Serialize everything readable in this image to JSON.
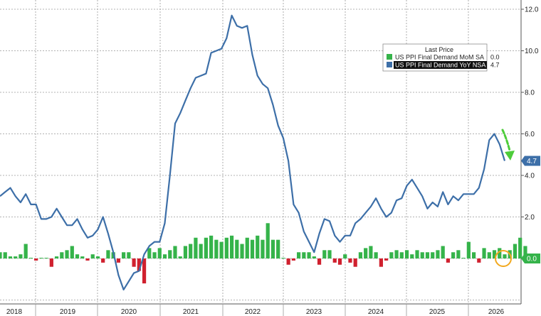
{
  "chart_data": {
    "type": "line",
    "legend": {
      "title": "Last Price",
      "placement": "top-right",
      "entries": [
        {
          "label": "US PPI Final Demand MoM SA",
          "value": "0.0",
          "color": "#35b34a"
        },
        {
          "label": "US PPI Final Demand YoY NSA",
          "value": "4.7",
          "color": "#3d6fa8"
        }
      ]
    },
    "y_ticks": [
      "12.0",
      "10.0",
      "8.0",
      "6.0",
      "4.0",
      "2.0",
      "0.0"
    ],
    "ylim": [
      -2.0,
      12.0
    ],
    "x_labels": [
      "2018",
      "2019",
      "2020",
      "2021",
      "2022",
      "2023",
      "2024",
      "2025",
      "2026"
    ],
    "grid": true,
    "last_value_tags": [
      {
        "text": "4.7",
        "value": 4.7,
        "color": "#3d6fa8"
      },
      {
        "text": "0.0",
        "value": 0.0,
        "color": "#35b34a"
      }
    ],
    "series": [
      {
        "name": "US PPI Final Demand YoY NSA",
        "kind": "line",
        "color": "#3d6fa8",
        "values": [
          3.0,
          3.2,
          3.4,
          3.0,
          2.7,
          3.1,
          2.6,
          2.6,
          1.9,
          1.9,
          2.0,
          2.4,
          2.0,
          1.6,
          1.6,
          1.9,
          1.4,
          1.0,
          1.1,
          1.4,
          2.0,
          1.2,
          0.3,
          -0.8,
          -1.5,
          -1.1,
          -0.7,
          -0.6,
          0.2,
          0.6,
          0.8,
          0.8,
          1.7,
          4.0,
          6.5,
          7.0,
          7.6,
          8.2,
          8.7,
          8.8,
          8.9,
          9.9,
          10.0,
          10.1,
          10.6,
          11.7,
          11.2,
          11.1,
          11.2,
          9.8,
          8.8,
          8.4,
          8.2,
          7.4,
          6.4,
          5.8,
          4.7,
          2.6,
          2.2,
          1.3,
          0.8,
          0.3,
          1.2,
          1.9,
          1.8,
          1.1,
          0.8,
          1.1,
          1.1,
          1.7,
          1.9,
          2.2,
          2.5,
          2.9,
          2.4,
          2.0,
          2.2,
          2.8,
          2.9,
          3.5,
          3.8,
          3.4,
          3.0,
          2.4,
          2.7,
          2.5,
          3.2,
          2.6,
          3.0,
          2.8,
          3.1,
          3.1,
          3.1,
          3.4,
          4.3,
          5.7,
          6.0,
          5.5,
          4.7
        ]
      },
      {
        "name": "US PPI Final Demand MoM SA",
        "kind": "bar",
        "color": "#35b34a",
        "negative_color": "#d0202e",
        "values": [
          0.3,
          0.3,
          0.1,
          0.1,
          0.2,
          0.7,
          0.0,
          -0.1,
          0.0,
          0.0,
          -0.4,
          0.1,
          0.3,
          0.4,
          0.6,
          0.2,
          0.1,
          -0.1,
          0.2,
          0.1,
          -0.2,
          0.4,
          0.3,
          -0.2,
          0.3,
          0.3,
          -0.4,
          -0.6,
          -1.2,
          0.5,
          0.3,
          0.5,
          0.2,
          0.4,
          0.6,
          0.1,
          0.6,
          0.7,
          1.0,
          0.7,
          1.0,
          1.1,
          0.9,
          0.8,
          1.0,
          1.1,
          0.9,
          0.7,
          1.0,
          0.9,
          1.1,
          0.9,
          1.7,
          0.9,
          0.9,
          0.0,
          -0.3,
          -0.1,
          0.3,
          0.3,
          0.3,
          0.1,
          -0.3,
          0.4,
          0.4,
          -0.2,
          -0.3,
          0.2,
          -0.2,
          -0.4,
          0.3,
          0.5,
          0.6,
          0.3,
          -0.4,
          -0.1,
          0.3,
          0.4,
          0.3,
          0.4,
          0.2,
          0.4,
          0.3,
          0.3,
          0.3,
          0.4,
          0.6,
          -0.2,
          0.3,
          0.4,
          0.0,
          0.8,
          0.3,
          -0.2,
          0.5,
          0.3,
          0.4,
          0.5,
          0.2,
          0.4,
          0.7,
          1.0,
          0.6,
          0.0
        ]
      }
    ]
  }
}
